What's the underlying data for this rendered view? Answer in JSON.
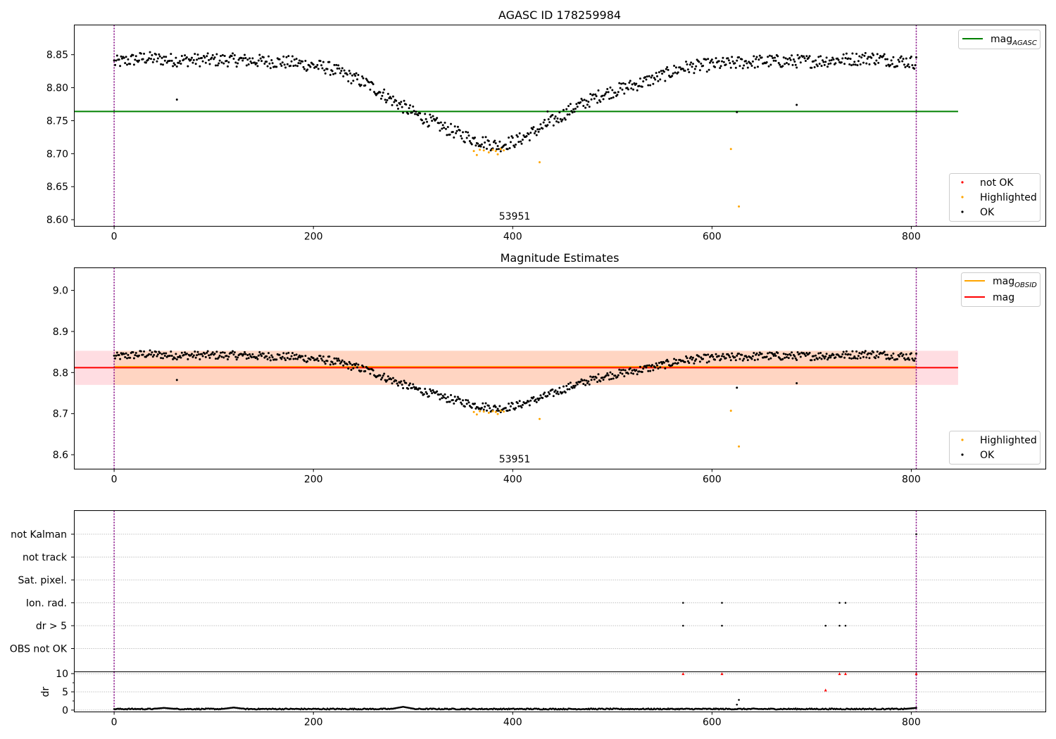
{
  "colors": {
    "ok": "#000000",
    "highlighted": "#ffa500",
    "not_ok": "#ff0000",
    "mag_agasc": "#008000",
    "mag_obsid": "#ffa500",
    "mag": "#ff0000",
    "obs_boundary": "#800080",
    "band_outer": "#ffdde2",
    "band_inner": "#ffd4bf"
  },
  "chart_data": [
    {
      "type": "scatter",
      "title": "AGASC ID 178259984",
      "xlabel": "",
      "ylabel": "",
      "xlim": [
        -40,
        935
      ],
      "ylim": [
        8.59,
        8.895
      ],
      "xticks": [
        "0",
        "200",
        "400",
        "600",
        "800"
      ],
      "yticks": [
        "8.60",
        "8.65",
        "8.70",
        "8.75",
        "8.80",
        "8.85"
      ],
      "annotation": "53951",
      "obs_boundaries": [
        0,
        805
      ],
      "hlines": [
        {
          "name": "mag_AGASC",
          "y": 8.764,
          "xrange": [
            -40,
            847
          ]
        }
      ],
      "legend": {
        "placement": "top-right",
        "entries": [
          {
            "base": "mag",
            "sub": "AGASC"
          }
        ]
      },
      "legend2": {
        "placement": "lower-right",
        "entries": [
          "not OK",
          "Highlighted",
          "OK"
        ]
      },
      "curve_anchors": [
        [
          0,
          8.838
        ],
        [
          30,
          8.845
        ],
        [
          60,
          8.842
        ],
        [
          120,
          8.842
        ],
        [
          180,
          8.838
        ],
        [
          215,
          8.83
        ],
        [
          235,
          8.818
        ],
        [
          255,
          8.805
        ],
        [
          275,
          8.785
        ],
        [
          300,
          8.762
        ],
        [
          330,
          8.74
        ],
        [
          360,
          8.722
        ],
        [
          385,
          8.712
        ],
        [
          405,
          8.72
        ],
        [
          430,
          8.74
        ],
        [
          460,
          8.768
        ],
        [
          490,
          8.79
        ],
        [
          520,
          8.803
        ],
        [
          545,
          8.815
        ],
        [
          570,
          8.83
        ],
        [
          600,
          8.835
        ],
        [
          650,
          8.84
        ],
        [
          700,
          8.84
        ],
        [
          760,
          8.845
        ],
        [
          805,
          8.838
        ]
      ],
      "highlighted_points": [
        [
          361,
          8.704
        ],
        [
          364,
          8.698
        ],
        [
          367,
          8.706
        ],
        [
          371,
          8.705
        ],
        [
          376,
          8.702
        ],
        [
          380,
          8.706
        ],
        [
          383,
          8.704
        ],
        [
          385,
          8.699
        ],
        [
          388,
          8.707
        ],
        [
          391,
          8.705
        ],
        [
          427,
          8.687
        ],
        [
          619,
          8.707
        ],
        [
          627,
          8.62
        ]
      ],
      "outlier_points": [
        [
          63,
          8.782
        ],
        [
          625,
          8.763
        ],
        [
          685,
          8.774
        ],
        [
          435,
          8.764
        ]
      ]
    },
    {
      "type": "scatter",
      "title": "Magnitude Estimates",
      "xlabel": "",
      "ylabel": "",
      "xlim": [
        -40,
        935
      ],
      "ylim": [
        8.565,
        9.055
      ],
      "xticks": [
        "0",
        "200",
        "400",
        "600",
        "800"
      ],
      "yticks": [
        "8.6",
        "8.7",
        "8.8",
        "8.9",
        "9.0"
      ],
      "annotation": "53951",
      "obs_boundaries": [
        0,
        805
      ],
      "hlines": [
        {
          "name": "mag_OBSID",
          "y": 8.812,
          "xrange": [
            0,
            805
          ]
        },
        {
          "name": "mag",
          "y": 8.812,
          "xrange": [
            -40,
            847
          ]
        }
      ],
      "bands": [
        {
          "y0": 8.77,
          "y1": 8.853,
          "xrange": [
            -40,
            847
          ],
          "kind": "outer"
        },
        {
          "y0": 8.77,
          "y1": 8.853,
          "xrange": [
            0,
            805
          ],
          "kind": "inner"
        }
      ],
      "legend": {
        "placement": "top-right",
        "entries": [
          {
            "base": "mag",
            "sub": "OBSID"
          },
          {
            "base": "mag",
            "sub": ""
          }
        ]
      },
      "legend2": {
        "placement": "lower-right",
        "entries": [
          "Highlighted",
          "OK"
        ]
      },
      "highlighted_points": [
        [
          361,
          8.704
        ],
        [
          364,
          8.698
        ],
        [
          367,
          8.706
        ],
        [
          371,
          8.705
        ],
        [
          376,
          8.702
        ],
        [
          380,
          8.706
        ],
        [
          383,
          8.704
        ],
        [
          385,
          8.699
        ],
        [
          388,
          8.707
        ],
        [
          391,
          8.705
        ],
        [
          427,
          8.687
        ],
        [
          619,
          8.707
        ],
        [
          627,
          8.62
        ]
      ],
      "outlier_points": [
        [
          63,
          8.782
        ],
        [
          625,
          8.763
        ],
        [
          685,
          8.774
        ]
      ]
    },
    {
      "type": "scatter",
      "title": "",
      "xlabel": "",
      "ylabel": "",
      "xlim": [
        -40,
        935
      ],
      "xticks": [
        "0",
        "200",
        "400",
        "600",
        "800"
      ],
      "obs_boundaries": [
        0,
        805
      ],
      "flag_rows": [
        "not Kalman",
        "not track",
        "Sat. pixel.",
        "Ion. rad.",
        "dr > 5",
        "OBS not OK"
      ],
      "flag_points": [
        {
          "row": "Ion. rad.",
          "x": [
            571,
            610,
            728,
            734
          ]
        },
        {
          "row": "dr > 5",
          "x": [
            571,
            610,
            714,
            728,
            734
          ]
        },
        {
          "row": "not Kalman",
          "x": [
            805
          ]
        }
      ]
    },
    {
      "type": "scatter",
      "title": "",
      "xlabel": "",
      "ylabel": "dr",
      "xlim": [
        -40,
        935
      ],
      "ylim": [
        -0.5,
        10.5
      ],
      "yticks": [
        "0",
        "5",
        "10"
      ],
      "baseline_dr": 0.3,
      "dr_bumps": [
        [
          50,
          0.6
        ],
        [
          120,
          0.7
        ],
        [
          290,
          0.9
        ],
        [
          805,
          0.6
        ]
      ],
      "red_points": [
        [
          571,
          10
        ],
        [
          610,
          10
        ],
        [
          714,
          5.5
        ],
        [
          728,
          10
        ],
        [
          734,
          10
        ],
        [
          805,
          10
        ]
      ],
      "black_points": [
        [
          625,
          1.5
        ],
        [
          627,
          2.8
        ]
      ]
    }
  ]
}
